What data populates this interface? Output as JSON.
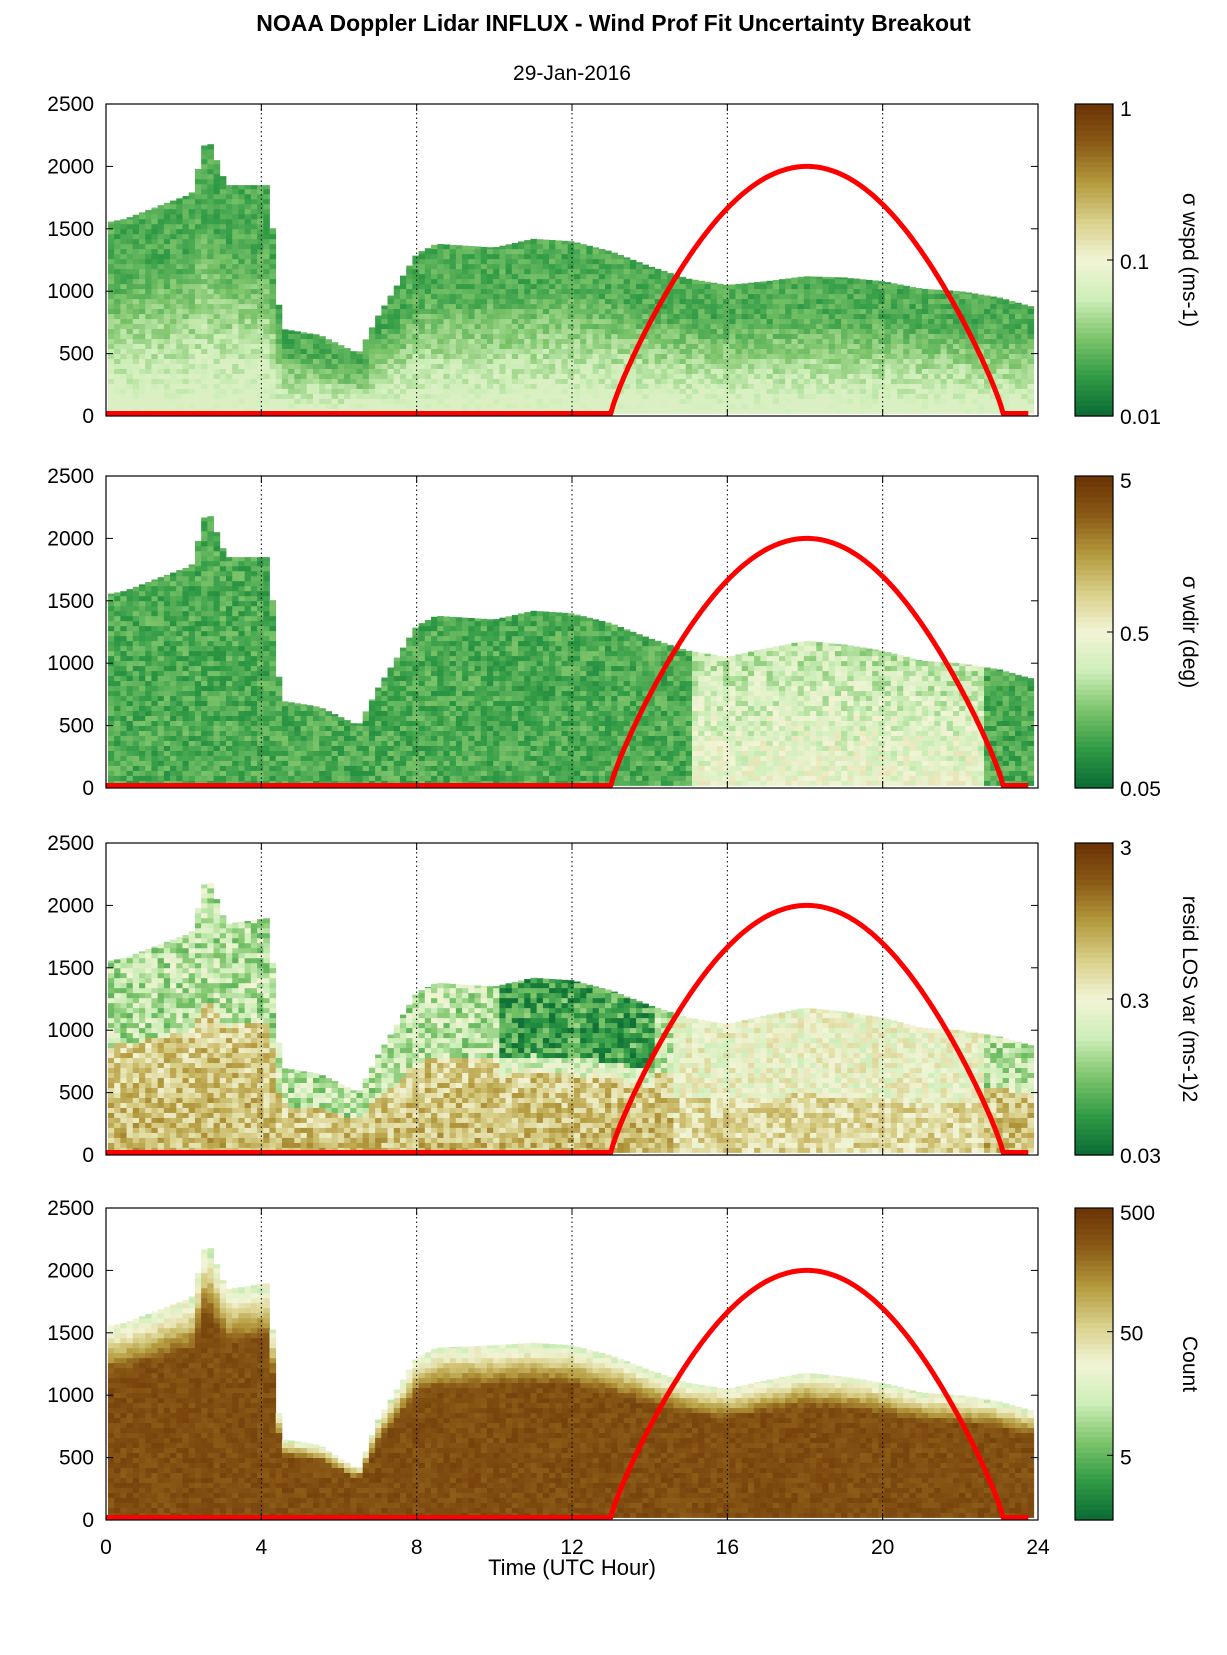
{
  "figure": {
    "title": "NOAA Doppler Lidar INFLUX - Wind Prof Fit Uncertainty Breakout",
    "date": "29-Jan-2016",
    "xlabel": "Time (UTC Hour)"
  },
  "colors": {
    "sun_curve": "#ff0000",
    "colormap": [
      "#0a6a34",
      "#2f9a45",
      "#7cc46a",
      "#cdeeb8",
      "#f2f4d6",
      "#d9d08a",
      "#b49a3e",
      "#8a5a16",
      "#6a3306"
    ]
  },
  "chart_data": [
    {
      "type": "heatmap",
      "title": "29-Jan-2016",
      "xlabel": "",
      "ylabel": "",
      "xlim": [
        0,
        24
      ],
      "ylim": [
        0,
        2500
      ],
      "x_ticks": [
        0,
        4,
        8,
        12,
        16,
        20,
        24
      ],
      "x_tick_labels": [
        "",
        "",
        "",
        "",
        "",
        "",
        ""
      ],
      "y_ticks": [
        0,
        500,
        1000,
        1500,
        2000,
        2500
      ],
      "y_tick_labels": [
        "0",
        "500",
        "1000",
        "1500",
        "2000",
        "2500"
      ],
      "grid": "vertical dotted at x ticks",
      "colorbar": {
        "label": "σ wspd (ms-1)",
        "scale": "log",
        "range": [
          0.01,
          1
        ],
        "ticks": [
          0.01,
          0.1,
          1
        ],
        "tick_labels": [
          "0.01",
          "0.1",
          "1"
        ]
      },
      "field_profile": "p1",
      "top_height": {
        "x": [
          0,
          0.5,
          1.5,
          2.2,
          2.6,
          3.1,
          4.2,
          4.5,
          5.5,
          6.5,
          7.0,
          8.0,
          8.5,
          10,
          11,
          12,
          13,
          14,
          15,
          16,
          17,
          18,
          19,
          20,
          21,
          22,
          23,
          23.8
        ],
        "y": [
          1550,
          1580,
          1700,
          1780,
          2250,
          1850,
          1850,
          700,
          650,
          500,
          800,
          1300,
          1380,
          1350,
          1420,
          1400,
          1320,
          1200,
          1100,
          1050,
          1080,
          1120,
          1110,
          1080,
          1020,
          1000,
          950,
          880
        ]
      },
      "sun_curve": {
        "rise_hour": 13,
        "set_hour": 23.1,
        "peak_value": 2000,
        "base_value": 20
      }
    },
    {
      "type": "heatmap",
      "title": "",
      "xlabel": "",
      "ylabel": "",
      "xlim": [
        0,
        24
      ],
      "ylim": [
        0,
        2500
      ],
      "x_ticks": [
        0,
        4,
        8,
        12,
        16,
        20,
        24
      ],
      "x_tick_labels": [
        "",
        "",
        "",
        "",
        "",
        "",
        ""
      ],
      "y_ticks": [
        0,
        500,
        1000,
        1500,
        2000,
        2500
      ],
      "y_tick_labels": [
        "0",
        "500",
        "1000",
        "1500",
        "2000",
        "2500"
      ],
      "grid": "vertical dotted at x ticks",
      "colorbar": {
        "label": "σ wdir (deg)",
        "scale": "log",
        "range": [
          0.05,
          5
        ],
        "ticks": [
          0.05,
          0.5,
          5
        ],
        "tick_labels": [
          "0.05",
          "0.5",
          "5"
        ]
      },
      "field_profile": "p2",
      "top_height": {
        "x": [
          0,
          0.5,
          1.5,
          2.2,
          2.6,
          3.1,
          4.2,
          4.5,
          5.5,
          6.5,
          7.0,
          8.0,
          8.5,
          10,
          11,
          12,
          13,
          14,
          15,
          16,
          17,
          18,
          19,
          20,
          21,
          22,
          23,
          23.8
        ],
        "y": [
          1550,
          1580,
          1700,
          1780,
          2250,
          1850,
          1850,
          700,
          650,
          500,
          800,
          1300,
          1380,
          1350,
          1420,
          1400,
          1320,
          1200,
          1100,
          1050,
          1120,
          1180,
          1150,
          1100,
          1020,
          1000,
          950,
          880
        ]
      },
      "sun_curve": {
        "rise_hour": 13,
        "set_hour": 23.1,
        "peak_value": 2000,
        "base_value": 20
      }
    },
    {
      "type": "heatmap",
      "title": "",
      "xlabel": "",
      "ylabel": "",
      "xlim": [
        0,
        24
      ],
      "ylim": [
        0,
        2500
      ],
      "x_ticks": [
        0,
        4,
        8,
        12,
        16,
        20,
        24
      ],
      "x_tick_labels": [
        "",
        "",
        "",
        "",
        "",
        "",
        ""
      ],
      "y_ticks": [
        0,
        500,
        1000,
        1500,
        2000,
        2500
      ],
      "y_tick_labels": [
        "0",
        "500",
        "1000",
        "1500",
        "2000",
        "2500"
      ],
      "grid": "vertical dotted at x ticks",
      "colorbar": {
        "label": "resid LOS var (ms-1)2",
        "scale": "log",
        "range": [
          0.03,
          3
        ],
        "ticks": [
          0.03,
          0.3,
          3
        ],
        "tick_labels": [
          "0.03",
          "0.3",
          "3"
        ]
      },
      "field_profile": "p3",
      "top_height": {
        "x": [
          0,
          0.5,
          1.5,
          2.2,
          2.6,
          3.1,
          4.2,
          4.5,
          5.5,
          6.5,
          7.0,
          8.0,
          8.5,
          10,
          11,
          12,
          13,
          14,
          15,
          16,
          17,
          18,
          19,
          20,
          21,
          22,
          23,
          23.8
        ],
        "y": [
          1550,
          1580,
          1700,
          1780,
          2250,
          1850,
          1900,
          700,
          650,
          500,
          800,
          1300,
          1380,
          1350,
          1420,
          1400,
          1320,
          1200,
          1100,
          1050,
          1120,
          1180,
          1150,
          1100,
          1020,
          1000,
          950,
          880
        ]
      },
      "sun_curve": {
        "rise_hour": 13,
        "set_hour": 23.1,
        "peak_value": 2000,
        "base_value": 20
      }
    },
    {
      "type": "heatmap",
      "title": "",
      "xlabel": "Time (UTC Hour)",
      "ylabel": "",
      "xlim": [
        0,
        24
      ],
      "ylim": [
        0,
        2500
      ],
      "x_ticks": [
        0,
        4,
        8,
        12,
        16,
        20,
        24
      ],
      "x_tick_labels": [
        "0",
        "4",
        "8",
        "12",
        "16",
        "20",
        "24"
      ],
      "y_ticks": [
        0,
        500,
        1000,
        1500,
        2000,
        2500
      ],
      "y_tick_labels": [
        "0",
        "500",
        "1000",
        "1500",
        "2000",
        "2500"
      ],
      "grid": "vertical dotted at x ticks",
      "colorbar": {
        "label": "Count",
        "scale": "log",
        "range": [
          1.5,
          500
        ],
        "ticks": [
          5,
          50,
          500
        ],
        "tick_labels": [
          "5",
          "50",
          "500"
        ]
      },
      "field_profile": "p4",
      "top_height": {
        "x": [
          0,
          0.5,
          1.5,
          2.2,
          2.6,
          3.1,
          4.2,
          4.5,
          5.5,
          6.5,
          7.0,
          8.0,
          8.5,
          10,
          11,
          12,
          13,
          14,
          15,
          16,
          17,
          18,
          19,
          20,
          21,
          22,
          23,
          23.8
        ],
        "y": [
          1550,
          1580,
          1700,
          1780,
          2250,
          1850,
          1900,
          650,
          600,
          400,
          800,
          1300,
          1380,
          1400,
          1420,
          1400,
          1320,
          1200,
          1100,
          1050,
          1120,
          1180,
          1150,
          1100,
          1020,
          1000,
          950,
          880
        ]
      },
      "sun_curve": {
        "rise_hour": 13,
        "set_hour": 23.1,
        "peak_value": 2000,
        "base_value": 20
      }
    }
  ]
}
